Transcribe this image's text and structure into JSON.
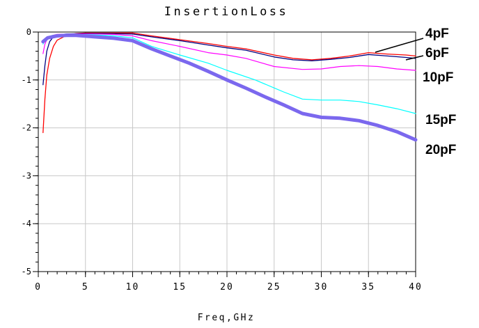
{
  "chart_data": {
    "type": "line",
    "title": "InsertionLoss",
    "xlabel": "Freq,GHz",
    "ylabel": "",
    "xlim": [
      0,
      40
    ],
    "ylim": [
      -5,
      0
    ],
    "x_ticks": [
      "0",
      "5",
      "10",
      "15",
      "20",
      "25",
      "30",
      "35",
      "40"
    ],
    "y_ticks": [
      "0",
      "-1",
      "-2",
      "-3",
      "-4",
      "-5"
    ],
    "grid": true,
    "series": [
      {
        "name": "4pF",
        "color": "#ff0000",
        "points": [
          [
            0.5,
            -2.1
          ],
          [
            0.7,
            -1.4
          ],
          [
            0.9,
            -0.9
          ],
          [
            1.2,
            -0.55
          ],
          [
            1.6,
            -0.3
          ],
          [
            2,
            -0.17
          ],
          [
            3,
            -0.07
          ],
          [
            4,
            -0.03
          ],
          [
            5,
            -0.02
          ],
          [
            7,
            -0.02
          ],
          [
            10,
            -0.02
          ],
          [
            12,
            -0.08
          ],
          [
            15,
            -0.16
          ],
          [
            18,
            -0.24
          ],
          [
            20,
            -0.3
          ],
          [
            22,
            -0.35
          ],
          [
            25,
            -0.48
          ],
          [
            27,
            -0.55
          ],
          [
            29,
            -0.58
          ],
          [
            31,
            -0.55
          ],
          [
            33,
            -0.5
          ],
          [
            35,
            -0.43
          ],
          [
            37,
            -0.46
          ],
          [
            39,
            -0.48
          ],
          [
            40,
            -0.5
          ]
        ]
      },
      {
        "name": "6pF",
        "color": "#000080",
        "points": [
          [
            0.5,
            -1.1
          ],
          [
            0.7,
            -0.7
          ],
          [
            0.9,
            -0.4
          ],
          [
            1.2,
            -0.2
          ],
          [
            1.6,
            -0.1
          ],
          [
            2,
            -0.06
          ],
          [
            3,
            -0.04
          ],
          [
            5,
            -0.03
          ],
          [
            7,
            -0.03
          ],
          [
            10,
            -0.04
          ],
          [
            12,
            -0.1
          ],
          [
            15,
            -0.18
          ],
          [
            18,
            -0.27
          ],
          [
            20,
            -0.33
          ],
          [
            22,
            -0.38
          ],
          [
            25,
            -0.52
          ],
          [
            27,
            -0.58
          ],
          [
            29,
            -0.6
          ],
          [
            31,
            -0.57
          ],
          [
            33,
            -0.53
          ],
          [
            35,
            -0.47
          ],
          [
            37,
            -0.5
          ],
          [
            39,
            -0.53
          ],
          [
            40,
            -0.55
          ]
        ]
      },
      {
        "name": "10pF",
        "color": "#ff00ff",
        "points": [
          [
            0.5,
            -0.45
          ],
          [
            0.7,
            -0.25
          ],
          [
            1,
            -0.12
          ],
          [
            1.5,
            -0.07
          ],
          [
            2,
            -0.05
          ],
          [
            4,
            -0.04
          ],
          [
            6,
            -0.04
          ],
          [
            8,
            -0.05
          ],
          [
            10,
            -0.08
          ],
          [
            12,
            -0.18
          ],
          [
            15,
            -0.3
          ],
          [
            18,
            -0.43
          ],
          [
            20,
            -0.48
          ],
          [
            22,
            -0.55
          ],
          [
            25,
            -0.72
          ],
          [
            28,
            -0.78
          ],
          [
            30,
            -0.77
          ],
          [
            32,
            -0.72
          ],
          [
            34,
            -0.7
          ],
          [
            36,
            -0.72
          ],
          [
            38,
            -0.77
          ],
          [
            40,
            -0.8
          ]
        ]
      },
      {
        "name": "15pF",
        "color": "#00ffff",
        "points": [
          [
            0.5,
            -0.25
          ],
          [
            1,
            -0.1
          ],
          [
            1.5,
            -0.07
          ],
          [
            2,
            -0.06
          ],
          [
            4,
            -0.05
          ],
          [
            6,
            -0.06
          ],
          [
            8,
            -0.08
          ],
          [
            10,
            -0.12
          ],
          [
            12,
            -0.3
          ],
          [
            15,
            -0.48
          ],
          [
            18,
            -0.65
          ],
          [
            20,
            -0.8
          ],
          [
            23,
            -1.0
          ],
          [
            26,
            -1.25
          ],
          [
            28,
            -1.4
          ],
          [
            30,
            -1.42
          ],
          [
            32,
            -1.42
          ],
          [
            34,
            -1.45
          ],
          [
            36,
            -1.52
          ],
          [
            38,
            -1.6
          ],
          [
            40,
            -1.7
          ]
        ]
      },
      {
        "name": "20pF",
        "color": "#7b68ee",
        "points": [
          [
            0.5,
            -0.2
          ],
          [
            1,
            -0.12
          ],
          [
            2,
            -0.08
          ],
          [
            3,
            -0.07
          ],
          [
            4,
            -0.07
          ],
          [
            6,
            -0.1
          ],
          [
            8,
            -0.13
          ],
          [
            10,
            -0.18
          ],
          [
            12,
            -0.35
          ],
          [
            14,
            -0.5
          ],
          [
            16,
            -0.65
          ],
          [
            18,
            -0.82
          ],
          [
            20,
            -1.0
          ],
          [
            22,
            -1.17
          ],
          [
            24,
            -1.35
          ],
          [
            26,
            -1.52
          ],
          [
            28,
            -1.7
          ],
          [
            30,
            -1.78
          ],
          [
            32,
            -1.8
          ],
          [
            34,
            -1.85
          ],
          [
            36,
            -1.95
          ],
          [
            38,
            -2.08
          ],
          [
            40,
            -2.25
          ]
        ]
      }
    ]
  }
}
